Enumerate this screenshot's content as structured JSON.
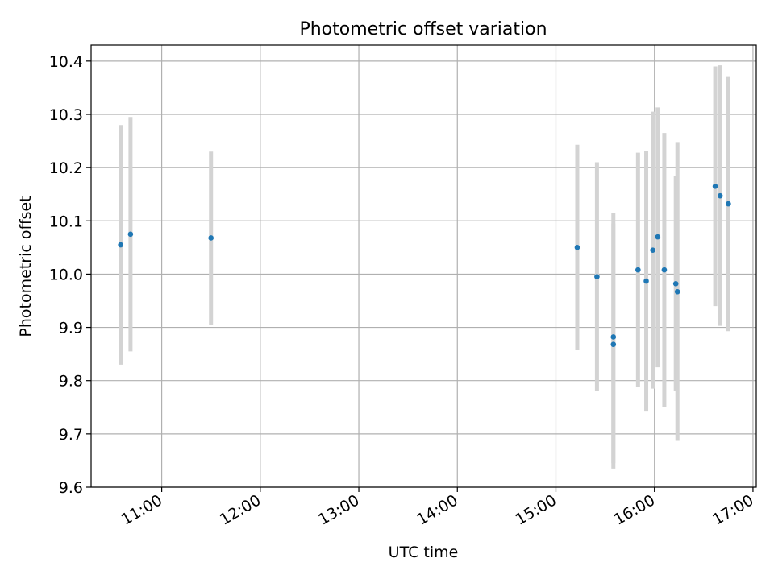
{
  "chart_data": {
    "type": "scatter",
    "title": "Photometric offset variation",
    "xlabel": "UTC time",
    "ylabel": "Photometric offset",
    "x_ticks": [
      "11:00",
      "12:00",
      "13:00",
      "14:00",
      "15:00",
      "16:00",
      "17:00"
    ],
    "y_ticks": [
      "9.6",
      "9.7",
      "9.8",
      "9.9",
      "10.0",
      "10.1",
      "10.2",
      "10.3",
      "10.4"
    ],
    "xlim": [
      "10:17",
      "17:02"
    ],
    "ylim": [
      9.6,
      10.43
    ],
    "grid": true,
    "point_color": "#1f77b4",
    "errorbar_color": "#d3d3d3",
    "points": [
      {
        "time": "10:35",
        "y": 10.055,
        "low": 9.83,
        "high": 10.28
      },
      {
        "time": "10:41",
        "y": 10.075,
        "low": 9.855,
        "high": 10.295
      },
      {
        "time": "11:30",
        "y": 10.068,
        "low": 9.905,
        "high": 10.23
      },
      {
        "time": "15:13",
        "y": 10.05,
        "low": 9.857,
        "high": 10.243
      },
      {
        "time": "15:25",
        "y": 9.995,
        "low": 9.78,
        "high": 10.21
      },
      {
        "time": "15:35",
        "y": 9.882,
        "low": 9.645,
        "high": 10.115
      },
      {
        "time": "15:35",
        "y": 9.868,
        "low": 9.635,
        "high": 10.095
      },
      {
        "time": "15:50",
        "y": 10.008,
        "low": 9.788,
        "high": 10.228
      },
      {
        "time": "15:55",
        "y": 9.987,
        "low": 9.742,
        "high": 10.232
      },
      {
        "time": "15:59",
        "y": 10.045,
        "low": 9.785,
        "high": 10.305
      },
      {
        "time": "16:02",
        "y": 10.07,
        "low": 9.825,
        "high": 10.313
      },
      {
        "time": "16:06",
        "y": 10.008,
        "low": 9.75,
        "high": 10.265
      },
      {
        "time": "16:13",
        "y": 9.982,
        "low": 9.78,
        "high": 10.185
      },
      {
        "time": "16:14",
        "y": 9.967,
        "low": 9.687,
        "high": 10.248
      },
      {
        "time": "16:37",
        "y": 10.165,
        "low": 9.94,
        "high": 10.39
      },
      {
        "time": "16:40",
        "y": 10.147,
        "low": 9.903,
        "high": 10.392
      },
      {
        "time": "16:45",
        "y": 10.132,
        "low": 9.893,
        "high": 10.37
      }
    ]
  }
}
